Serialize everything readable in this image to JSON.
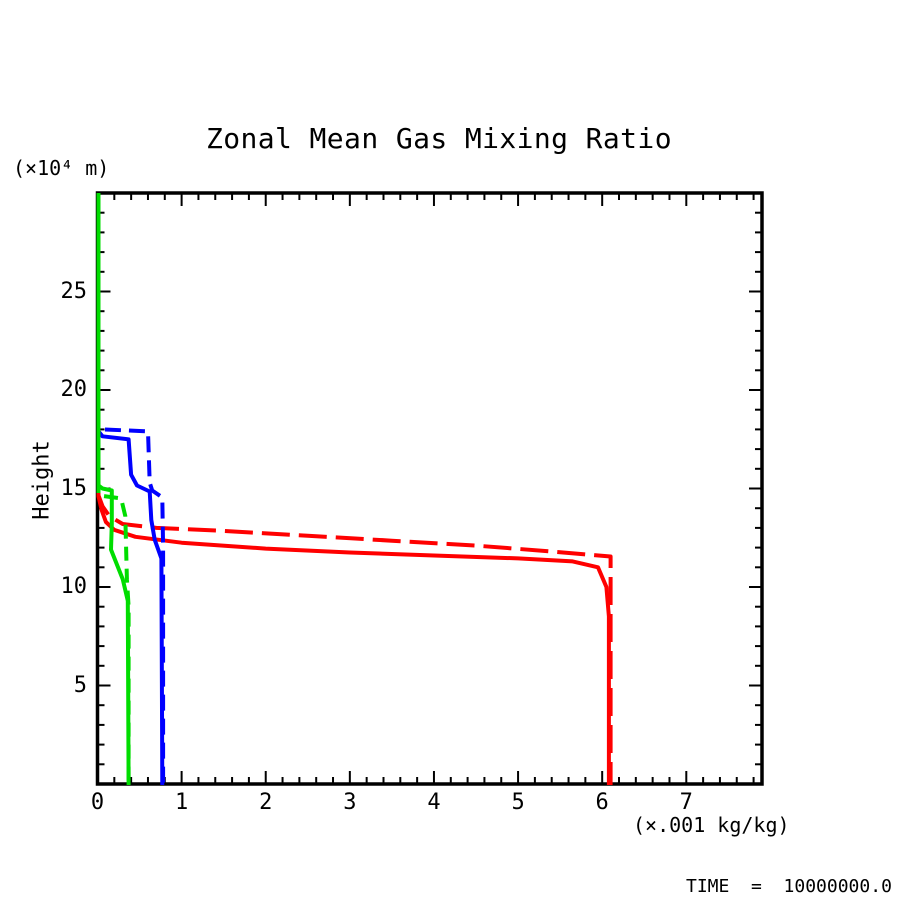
{
  "title": "Zonal Mean Gas Mixing Ratio",
  "y_unit_label": "(×10⁴ m)",
  "ylabel": "Height",
  "x_unit_label": "(×.001 kg/kg)",
  "time_label": "TIME  =  10000000.0",
  "colors": {
    "frame": "#000000",
    "red": "#ff0000",
    "blue": "#0000ff",
    "green": "#00dd00"
  },
  "chart_data": {
    "type": "line",
    "title": "Zonal Mean Gas Mixing Ratio",
    "xlabel": "(×.001 kg/kg)",
    "ylabel": "Height (×10⁴ m)",
    "xlim": [
      0,
      7.9
    ],
    "ylim": [
      0,
      30
    ],
    "grid": false,
    "legend": "none",
    "x_major_ticks": [
      0,
      1,
      2,
      3,
      4,
      5,
      6,
      7
    ],
    "x_minor_step": 0.2,
    "y_major_ticks": [
      5,
      10,
      15,
      20,
      25
    ],
    "y_minor_step": 1,
    "annotation": "TIME = 10000000.0",
    "series": [
      {
        "name": "red-solid",
        "color": "#ff0000",
        "style": "solid",
        "dasharray": "",
        "points": [
          [
            0.012,
            30
          ],
          [
            0.012,
            14.6
          ],
          [
            0.05,
            13.9
          ],
          [
            0.1,
            13.3
          ],
          [
            0.2,
            12.9
          ],
          [
            0.45,
            12.55
          ],
          [
            1.0,
            12.25
          ],
          [
            2.0,
            11.95
          ],
          [
            3.0,
            11.75
          ],
          [
            4.0,
            11.6
          ],
          [
            5.0,
            11.45
          ],
          [
            5.65,
            11.3
          ],
          [
            5.95,
            11.0
          ],
          [
            6.05,
            10.0
          ],
          [
            6.08,
            8.5
          ],
          [
            6.08,
            -0.05
          ]
        ]
      },
      {
        "name": "red-dashed",
        "color": "#ff0000",
        "style": "dashed",
        "dasharray": "28 9",
        "points": [
          [
            0.012,
            30
          ],
          [
            0.012,
            14.65
          ],
          [
            0.06,
            14.1
          ],
          [
            0.14,
            13.6
          ],
          [
            0.3,
            13.2
          ],
          [
            0.7,
            13.0
          ],
          [
            1.5,
            12.85
          ],
          [
            2.5,
            12.6
          ],
          [
            3.5,
            12.35
          ],
          [
            4.5,
            12.1
          ],
          [
            5.4,
            11.8
          ],
          [
            6.1,
            11.55
          ],
          [
            6.1,
            -0.05
          ]
        ]
      },
      {
        "name": "blue-solid",
        "color": "#0000ff",
        "style": "solid",
        "dasharray": "",
        "points": [
          [
            0.012,
            30
          ],
          [
            0.012,
            17.9
          ],
          [
            0.06,
            17.65
          ],
          [
            0.37,
            17.5
          ],
          [
            0.4,
            15.7
          ],
          [
            0.47,
            15.15
          ],
          [
            0.62,
            14.85
          ],
          [
            0.64,
            13.4
          ],
          [
            0.68,
            12.4
          ],
          [
            0.76,
            11.45
          ],
          [
            0.77,
            -0.05
          ]
        ]
      },
      {
        "name": "blue-dashed",
        "color": "#0000ff",
        "style": "dashed",
        "dasharray": "16 8",
        "points": [
          [
            0.012,
            30
          ],
          [
            0.012,
            18.25
          ],
          [
            0.07,
            18.0
          ],
          [
            0.6,
            17.9
          ],
          [
            0.62,
            15.3
          ],
          [
            0.65,
            14.9
          ],
          [
            0.77,
            14.55
          ],
          [
            0.78,
            12.0
          ],
          [
            0.78,
            -0.05
          ]
        ]
      },
      {
        "name": "green-dashed",
        "color": "#00dd00",
        "style": "dashed",
        "dasharray": "14 8",
        "points": [
          [
            0.012,
            30
          ],
          [
            0.012,
            14.65
          ],
          [
            0.28,
            14.5
          ],
          [
            0.33,
            13.6
          ],
          [
            0.34,
            12.0
          ],
          [
            0.35,
            10.4
          ],
          [
            0.37,
            9.0
          ],
          [
            0.37,
            -0.05
          ]
        ]
      },
      {
        "name": "green-solid",
        "color": "#00dd00",
        "style": "solid",
        "dasharray": "",
        "points": [
          [
            0.012,
            30
          ],
          [
            0.012,
            15.15
          ],
          [
            0.06,
            15.0
          ],
          [
            0.17,
            14.9
          ],
          [
            0.17,
            13.2
          ],
          [
            0.16,
            11.9
          ],
          [
            0.3,
            10.4
          ],
          [
            0.36,
            9.3
          ],
          [
            0.37,
            -0.05
          ]
        ]
      }
    ]
  }
}
